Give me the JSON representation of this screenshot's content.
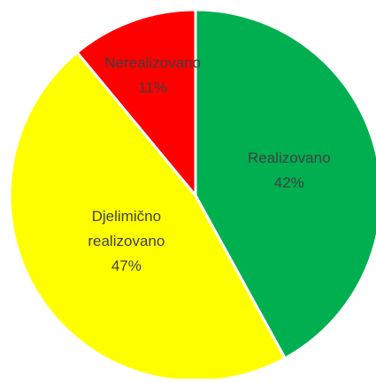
{
  "chart_data": {
    "type": "pie",
    "title": "",
    "slices": [
      {
        "label_lines": [
          "Realizovano"
        ],
        "value": 42,
        "value_label": "42%",
        "color": "#00b050"
      },
      {
        "label_lines": [
          "Djelimično",
          "realizovano"
        ],
        "value": 47,
        "value_label": "47%",
        "color": "#ffff00"
      },
      {
        "label_lines": [
          "Nerealizovano"
        ],
        "value": 11,
        "value_label": "11%",
        "color": "#ff0000"
      }
    ],
    "start_angle": "12 o'clock",
    "direction": "clockwise",
    "slice_border_color": "#ffffff",
    "legend": "none"
  }
}
